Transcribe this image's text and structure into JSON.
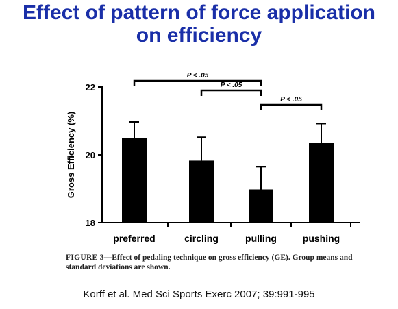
{
  "slide": {
    "title_line1": "Effect of pattern of force application",
    "title_line2": "on efficiency",
    "caption_label": "FIGURE 3",
    "caption_text": "—Effect of pedaling technique on gross efficiency (GE). Group means and standard deviations are shown.",
    "citation": "Korff et al. Med Sci Sports Exerc 2007; 39:991-995"
  },
  "colors": {
    "title": "#1a2fa8",
    "bars": "#000000"
  },
  "chart_data": {
    "type": "bar",
    "categories": [
      "preferred",
      "circling",
      "pulling",
      "pushing"
    ],
    "values": [
      20.5,
      19.83,
      18.98,
      20.36
    ],
    "errors": [
      0.47,
      0.69,
      0.67,
      0.56
    ],
    "ylabel": "Gross Efficiency (%)",
    "xlabel": "",
    "title": "",
    "ylim": [
      18,
      22
    ],
    "yticks": [
      18,
      20,
      22
    ],
    "grid": false,
    "significance": [
      {
        "from": 0,
        "to": 2,
        "label": "P < .05"
      },
      {
        "from": 1,
        "to": 2,
        "label": "P < .05"
      },
      {
        "from": 2,
        "to": 3,
        "label": "P < .05"
      }
    ]
  }
}
